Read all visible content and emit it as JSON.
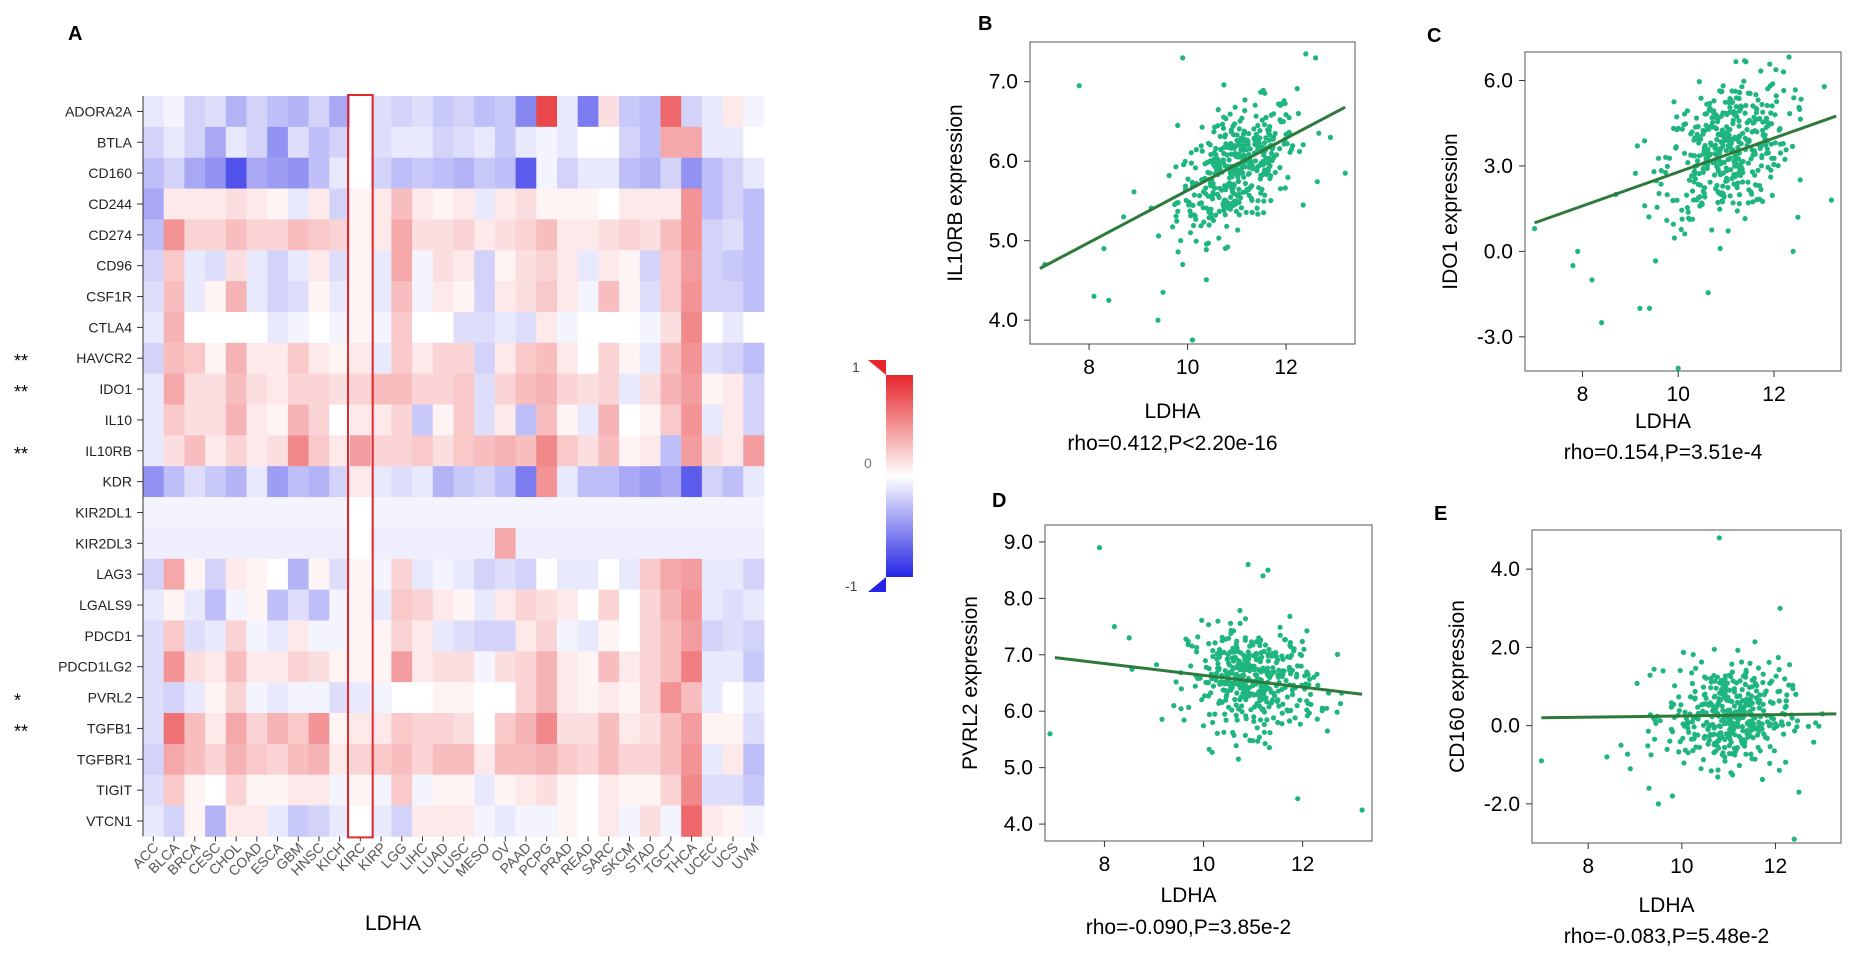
{
  "heatmap": {
    "panel_label": "A",
    "xlabel": "LDHA",
    "legend_max": "1",
    "legend_mid": "0",
    "legend_min": "-1",
    "stars": [
      "",
      "",
      "",
      "",
      "",
      "",
      "",
      "",
      "**",
      "**",
      "",
      "**",
      "",
      "",
      "",
      "",
      "",
      "",
      "",
      "*",
      "**",
      "",
      "",
      ""
    ]
  },
  "colors": {
    "dot": "#1fb57f",
    "fit_line": "#2e7a3a",
    "highlight": "#e0292d",
    "positive": "#e6262b",
    "negative": "#2525e6"
  },
  "chart_data": [
    {
      "panel": "A",
      "type": "heatmap",
      "xlabel": "LDHA",
      "color_range": [
        -1,
        1
      ],
      "rows": [
        "ADORA2A",
        "BTLA",
        "CD160",
        "CD244",
        "CD274",
        "CD96",
        "CSF1R",
        "CTLA4",
        "HAVCR2",
        "IDO1",
        "IL10",
        "IL10RB",
        "KDR",
        "KIR2DL1",
        "KIR2DL3",
        "LAG3",
        "LGALS9",
        "PDCD1",
        "PDCD1LG2",
        "PVRL2",
        "TGFB1",
        "TGFBR1",
        "TIGIT",
        "VTCN1"
      ],
      "cols": [
        "ACC",
        "BLCA",
        "BRCA",
        "CESC",
        "CHOL",
        "COAD",
        "ESCA",
        "GBM",
        "HNSC",
        "KICH",
        "KIRC",
        "KIRP",
        "LGG",
        "LIHC",
        "LUAD",
        "LUSC",
        "MESO",
        "OV",
        "PAAD",
        "PCPG",
        "PRAD",
        "READ",
        "SARC",
        "SKCM",
        "STAD",
        "TGCT",
        "THCA",
        "UCEC",
        "UCS",
        "UVM"
      ],
      "highlight_col": "KIRC",
      "values": [
        [
          -0.1,
          -0.05,
          -0.2,
          -0.15,
          -0.35,
          -0.2,
          -0.3,
          -0.35,
          -0.2,
          -0.4,
          0.0,
          -0.15,
          -0.2,
          -0.15,
          -0.25,
          -0.2,
          -0.3,
          -0.25,
          -0.55,
          0.85,
          -0.1,
          -0.6,
          0.15,
          -0.25,
          -0.3,
          0.7,
          -0.2,
          -0.1,
          0.1,
          -0.05
        ],
        [
          -0.2,
          -0.1,
          -0.2,
          -0.4,
          -0.1,
          -0.2,
          -0.5,
          -0.15,
          -0.3,
          -0.2,
          0.0,
          -0.15,
          -0.1,
          -0.1,
          -0.2,
          -0.15,
          -0.1,
          -0.25,
          -0.1,
          -0.05,
          -0.1,
          0.0,
          0.0,
          -0.2,
          -0.3,
          0.4,
          0.4,
          -0.1,
          -0.1,
          0.0
        ],
        [
          -0.3,
          -0.2,
          -0.4,
          -0.5,
          -0.8,
          -0.4,
          -0.45,
          -0.5,
          -0.3,
          -0.1,
          0.0,
          -0.2,
          -0.3,
          -0.25,
          -0.3,
          -0.35,
          -0.25,
          -0.3,
          -0.75,
          -0.05,
          -0.2,
          -0.1,
          -0.1,
          -0.3,
          -0.35,
          -0.2,
          -0.5,
          -0.3,
          -0.2,
          -0.1
        ],
        [
          -0.4,
          0.1,
          0.1,
          0.1,
          0.15,
          0.1,
          0.05,
          -0.1,
          0.1,
          -0.2,
          0.05,
          0.1,
          0.3,
          0.1,
          0.05,
          0.1,
          -0.1,
          0.1,
          0.15,
          0.05,
          0.05,
          0.05,
          0.0,
          0.1,
          0.1,
          0.1,
          0.5,
          -0.3,
          -0.2,
          -0.3
        ],
        [
          -0.3,
          0.5,
          0.2,
          0.2,
          0.3,
          0.2,
          0.2,
          0.3,
          0.25,
          0.2,
          0.05,
          0.1,
          0.4,
          0.15,
          0.15,
          0.2,
          0.1,
          0.15,
          0.2,
          0.3,
          0.1,
          0.1,
          0.15,
          0.2,
          0.15,
          0.3,
          0.5,
          -0.2,
          -0.15,
          -0.3
        ],
        [
          -0.2,
          0.25,
          -0.1,
          -0.15,
          0.15,
          -0.1,
          -0.2,
          -0.1,
          0.1,
          -0.15,
          0.05,
          -0.1,
          0.4,
          -0.05,
          0.15,
          0.1,
          -0.2,
          0.05,
          0.15,
          0.2,
          0.1,
          -0.1,
          0.1,
          0.05,
          -0.2,
          0.25,
          0.45,
          -0.2,
          -0.25,
          -0.3
        ],
        [
          -0.15,
          0.3,
          -0.1,
          0.05,
          0.35,
          -0.1,
          -0.2,
          -0.15,
          0.05,
          -0.1,
          0.05,
          -0.1,
          0.3,
          -0.05,
          0.1,
          0.05,
          -0.2,
          0.1,
          0.15,
          0.25,
          0.1,
          -0.05,
          0.3,
          0.05,
          -0.15,
          0.25,
          0.5,
          -0.2,
          -0.2,
          -0.3
        ],
        [
          -0.1,
          0.35,
          0.0,
          0.0,
          0.0,
          0.0,
          -0.1,
          -0.05,
          0.0,
          -0.05,
          0.05,
          -0.05,
          0.25,
          0.0,
          0.0,
          -0.15,
          -0.15,
          -0.1,
          -0.15,
          0.1,
          -0.05,
          0.0,
          0.0,
          0.0,
          -0.05,
          0.15,
          0.55,
          0.0,
          -0.1,
          0.0
        ],
        [
          -0.2,
          0.3,
          0.25,
          0.05,
          0.35,
          0.1,
          0.1,
          0.25,
          0.1,
          0.05,
          0.1,
          -0.1,
          0.25,
          0.1,
          0.2,
          0.2,
          -0.2,
          0.1,
          0.25,
          0.3,
          0.1,
          0.0,
          0.2,
          0.05,
          -0.1,
          0.3,
          0.5,
          -0.15,
          -0.2,
          -0.3
        ],
        [
          -0.1,
          0.4,
          0.15,
          0.15,
          0.3,
          0.15,
          0.1,
          0.2,
          0.2,
          0.15,
          0.2,
          0.3,
          0.3,
          0.2,
          0.2,
          0.25,
          -0.15,
          0.2,
          0.3,
          0.35,
          0.2,
          0.15,
          0.2,
          -0.1,
          0.15,
          0.35,
          0.45,
          0.05,
          0.1,
          -0.2
        ],
        [
          -0.1,
          0.25,
          0.15,
          0.15,
          0.35,
          0.1,
          0.05,
          0.35,
          0.2,
          0.0,
          0.1,
          0.1,
          0.2,
          -0.25,
          0.05,
          0.25,
          -0.15,
          0.1,
          -0.3,
          0.3,
          0.05,
          -0.1,
          0.35,
          0.0,
          0.05,
          0.25,
          0.5,
          -0.1,
          0.1,
          -0.2
        ],
        [
          -0.1,
          0.15,
          0.3,
          0.1,
          0.2,
          0.1,
          0.15,
          0.55,
          0.25,
          0.1,
          0.45,
          0.2,
          0.2,
          0.25,
          0.15,
          0.25,
          0.3,
          0.35,
          0.3,
          0.55,
          0.25,
          0.15,
          0.3,
          0.05,
          0.1,
          -0.3,
          0.45,
          0.15,
          0.1,
          0.45
        ],
        [
          -0.5,
          -0.3,
          -0.15,
          -0.25,
          -0.35,
          -0.1,
          -0.45,
          -0.3,
          -0.35,
          -0.2,
          0.1,
          -0.1,
          -0.15,
          -0.1,
          -0.35,
          -0.25,
          -0.2,
          -0.3,
          -0.6,
          0.5,
          -0.1,
          -0.3,
          -0.3,
          -0.4,
          -0.45,
          -0.4,
          -0.75,
          -0.2,
          -0.3,
          -0.1
        ],
        [
          -0.05,
          -0.05,
          -0.05,
          -0.05,
          -0.05,
          -0.05,
          -0.05,
          -0.05,
          -0.05,
          -0.05,
          0.0,
          -0.05,
          -0.05,
          -0.05,
          -0.05,
          -0.05,
          -0.05,
          -0.05,
          -0.05,
          -0.05,
          -0.05,
          -0.05,
          -0.05,
          -0.05,
          -0.05,
          -0.05,
          -0.05,
          -0.05,
          -0.05,
          -0.05
        ],
        [
          -0.08,
          -0.08,
          -0.08,
          -0.08,
          -0.08,
          -0.08,
          -0.08,
          -0.08,
          -0.08,
          -0.08,
          0.0,
          -0.08,
          -0.08,
          -0.08,
          -0.08,
          -0.08,
          -0.08,
          0.4,
          -0.08,
          -0.08,
          -0.08,
          -0.08,
          -0.08,
          -0.08,
          -0.08,
          -0.08,
          -0.08,
          -0.08,
          -0.08,
          -0.08
        ],
        [
          -0.2,
          0.4,
          0.05,
          -0.2,
          0.1,
          0.05,
          0.0,
          -0.35,
          0.05,
          -0.15,
          0.05,
          -0.05,
          0.2,
          -0.1,
          -0.05,
          -0.1,
          -0.2,
          -0.15,
          -0.2,
          0.0,
          -0.1,
          -0.1,
          0.0,
          -0.1,
          0.25,
          0.4,
          0.45,
          -0.1,
          -0.1,
          -0.2
        ],
        [
          -0.1,
          0.05,
          -0.1,
          -0.3,
          -0.05,
          0.05,
          -0.3,
          -0.15,
          -0.3,
          -0.05,
          0.05,
          -0.1,
          0.25,
          0.2,
          0.1,
          0.05,
          -0.1,
          0.1,
          0.2,
          0.15,
          0.1,
          0.0,
          0.2,
          0.0,
          0.2,
          0.35,
          0.5,
          -0.1,
          -0.15,
          -0.1
        ],
        [
          -0.15,
          0.25,
          -0.15,
          -0.1,
          0.2,
          -0.05,
          -0.1,
          0.1,
          -0.05,
          -0.05,
          0.05,
          0.05,
          0.2,
          0.1,
          -0.1,
          -0.15,
          -0.2,
          -0.2,
          0.1,
          0.2,
          -0.05,
          -0.1,
          0.05,
          0.0,
          0.2,
          0.3,
          0.45,
          -0.2,
          -0.15,
          -0.2
        ],
        [
          -0.15,
          0.5,
          0.15,
          0.1,
          0.3,
          0.1,
          0.1,
          0.2,
          0.15,
          0.05,
          0.05,
          0.05,
          0.45,
          0.1,
          0.15,
          0.15,
          -0.05,
          0.15,
          0.2,
          0.35,
          0.1,
          0.05,
          0.3,
          0.1,
          0.2,
          0.3,
          0.6,
          -0.1,
          -0.1,
          -0.25
        ],
        [
          -0.15,
          -0.2,
          -0.1,
          0.05,
          0.2,
          -0.05,
          -0.1,
          -0.05,
          -0.05,
          -0.15,
          -0.1,
          -0.05,
          0.0,
          0.0,
          0.05,
          0.05,
          0.0,
          0.0,
          0.2,
          0.35,
          0.1,
          0.05,
          0.1,
          0.05,
          0.2,
          0.5,
          0.3,
          -0.1,
          0.0,
          -0.1
        ],
        [
          -0.15,
          0.65,
          0.3,
          0.1,
          0.4,
          0.2,
          0.35,
          0.25,
          0.5,
          0.05,
          0.1,
          0.1,
          0.25,
          0.2,
          0.2,
          0.15,
          0.0,
          0.25,
          0.35,
          0.55,
          0.15,
          0.15,
          0.3,
          0.1,
          0.15,
          0.3,
          0.45,
          0.05,
          0.05,
          -0.15
        ],
        [
          -0.2,
          0.4,
          0.3,
          0.2,
          0.35,
          0.25,
          0.2,
          0.3,
          0.35,
          0.1,
          0.2,
          0.25,
          0.3,
          0.2,
          0.3,
          0.3,
          0.1,
          0.3,
          0.3,
          0.35,
          0.25,
          0.2,
          0.3,
          0.2,
          0.2,
          0.3,
          0.5,
          -0.1,
          0.1,
          -0.3
        ],
        [
          -0.15,
          0.25,
          0.05,
          0.0,
          0.2,
          0.05,
          0.05,
          0.1,
          0.1,
          -0.05,
          0.05,
          -0.05,
          0.25,
          -0.05,
          0.05,
          0.05,
          -0.1,
          0.05,
          0.1,
          0.15,
          0.05,
          0.0,
          0.1,
          0.05,
          0.05,
          0.2,
          0.55,
          -0.15,
          -0.15,
          -0.25
        ],
        [
          -0.1,
          -0.2,
          0.05,
          -0.35,
          0.1,
          0.1,
          -0.1,
          -0.25,
          -0.2,
          -0.1,
          0.0,
          -0.1,
          -0.2,
          0.1,
          0.1,
          0.1,
          -0.05,
          -0.1,
          -0.05,
          -0.05,
          0.05,
          0.0,
          0.1,
          -0.05,
          0.15,
          -0.05,
          0.7,
          0.1,
          0.05,
          -0.05
        ]
      ]
    },
    {
      "panel": "B",
      "type": "scatter",
      "xlabel": "LDHA",
      "ylabel": "IL10RB expression",
      "stat": "rho=0.412,P<2.20e-16",
      "xlim": [
        6.8,
        13.4
      ],
      "ylim": [
        3.7,
        7.5
      ],
      "xticks": [
        8,
        10,
        12
      ],
      "yticks": [
        4.0,
        5.0,
        6.0,
        7.0
      ],
      "xtick_labels": [
        "8",
        "10",
        "12"
      ],
      "ytick_labels": [
        "4.0",
        "5.0",
        "6.0",
        "7.0"
      ],
      "fit": [
        [
          7.0,
          4.65
        ],
        [
          13.2,
          6.68
        ]
      ],
      "cluster": {
        "cx": 11.0,
        "cy": 5.9,
        "sx": 0.6,
        "sy": 0.35,
        "n": 420,
        "slope": 0.33
      },
      "outliers": [
        [
          7.1,
          4.7
        ],
        [
          7.8,
          6.95
        ],
        [
          8.1,
          4.3
        ],
        [
          8.4,
          4.25
        ],
        [
          8.3,
          4.9
        ],
        [
          9.4,
          4.0
        ],
        [
          9.5,
          4.35
        ],
        [
          9.8,
          6.45
        ],
        [
          9.9,
          4.7
        ],
        [
          10.1,
          3.75
        ],
        [
          9.9,
          7.3
        ],
        [
          12.4,
          7.35
        ],
        [
          12.6,
          7.3
        ],
        [
          13.2,
          5.85
        ],
        [
          12.9,
          6.3
        ],
        [
          8.7,
          5.3
        ]
      ]
    },
    {
      "panel": "C",
      "type": "scatter",
      "xlabel": "LDHA",
      "ylabel": "IDO1 expression",
      "stat": "rho=0.154,P=3.51e-4",
      "xlim": [
        6.8,
        13.4
      ],
      "ylim": [
        -4.2,
        7.0
      ],
      "xticks": [
        8,
        10,
        12
      ],
      "yticks": [
        -3.0,
        0.0,
        3.0,
        6.0
      ],
      "xtick_labels": [
        "8",
        "10",
        "12"
      ],
      "ytick_labels": [
        "-3.0",
        "0.0",
        "3.0",
        "6.0"
      ],
      "fit": [
        [
          7.0,
          1.0
        ],
        [
          13.3,
          4.75
        ]
      ],
      "cluster": {
        "cx": 11.0,
        "cy": 3.6,
        "sx": 0.65,
        "sy": 1.2,
        "n": 420,
        "slope": 0.6
      },
      "outliers": [
        [
          7.0,
          0.8
        ],
        [
          7.8,
          -0.5
        ],
        [
          7.9,
          0.0
        ],
        [
          8.2,
          -1.0
        ],
        [
          8.4,
          -2.5
        ],
        [
          9.2,
          -2.0
        ],
        [
          9.4,
          -2.0
        ],
        [
          10.0,
          -4.1
        ],
        [
          12.4,
          0.0
        ],
        [
          12.5,
          1.2
        ],
        [
          13.2,
          1.8
        ],
        [
          9.3,
          1.6
        ],
        [
          8.7,
          2.0
        ],
        [
          12.2,
          6.3
        ]
      ]
    },
    {
      "panel": "D",
      "type": "scatter",
      "xlabel": "LDHA",
      "ylabel": "PVRL2 expression",
      "stat": "rho=-0.090,P=3.85e-2",
      "xlim": [
        6.8,
        13.4
      ],
      "ylim": [
        3.7,
        9.3
      ],
      "xticks": [
        8,
        10,
        12
      ],
      "yticks": [
        4.0,
        5.0,
        6.0,
        7.0,
        8.0,
        9.0
      ],
      "xtick_labels": [
        "8",
        "10",
        "12"
      ],
      "ytick_labels": [
        "4.0",
        "5.0",
        "6.0",
        "7.0",
        "8.0",
        "9.0"
      ],
      "fit": [
        [
          7.0,
          6.95
        ],
        [
          13.2,
          6.3
        ]
      ],
      "cluster": {
        "cx": 11.0,
        "cy": 6.55,
        "sx": 0.65,
        "sy": 0.45,
        "n": 420,
        "slope": -0.05
      },
      "outliers": [
        [
          6.9,
          5.6
        ],
        [
          7.9,
          8.9
        ],
        [
          8.2,
          7.5
        ],
        [
          8.5,
          7.3
        ],
        [
          9.4,
          6.1
        ],
        [
          10.9,
          8.6
        ],
        [
          11.3,
          8.5
        ],
        [
          11.2,
          8.4
        ],
        [
          11.5,
          6.2
        ],
        [
          11.9,
          4.45
        ],
        [
          11.0,
          3.65
        ],
        [
          13.2,
          4.25
        ],
        [
          12.5,
          5.65
        ]
      ]
    },
    {
      "panel": "E",
      "type": "scatter",
      "xlabel": "LDHA",
      "ylabel": "CD160 expression",
      "stat": "rho=-0.083,P=5.48e-2",
      "xlim": [
        6.8,
        13.4
      ],
      "ylim": [
        -3.0,
        5.0
      ],
      "xticks": [
        8,
        10,
        12
      ],
      "yticks": [
        -2.0,
        0.0,
        2.0,
        4.0
      ],
      "xtick_labels": [
        "8",
        "10",
        "12"
      ],
      "ytick_labels": [
        "-2.0",
        "0.0",
        "2.0",
        "4.0"
      ],
      "fit": [
        [
          7.0,
          0.2
        ],
        [
          13.3,
          0.3
        ]
      ],
      "cluster": {
        "cx": 11.0,
        "cy": 0.25,
        "sx": 0.65,
        "sy": 0.65,
        "n": 420,
        "slope": 0.0
      },
      "outliers": [
        [
          7.0,
          -0.9
        ],
        [
          8.4,
          -0.8
        ],
        [
          8.7,
          -0.5
        ],
        [
          8.9,
          -1.1
        ],
        [
          9.3,
          -1.6
        ],
        [
          9.5,
          -2.0
        ],
        [
          9.6,
          1.4
        ],
        [
          10.8,
          4.8
        ],
        [
          12.1,
          3.0
        ],
        [
          12.4,
          -2.9
        ],
        [
          12.5,
          -1.7
        ],
        [
          13.0,
          0.3
        ],
        [
          9.8,
          -1.8
        ]
      ]
    }
  ]
}
